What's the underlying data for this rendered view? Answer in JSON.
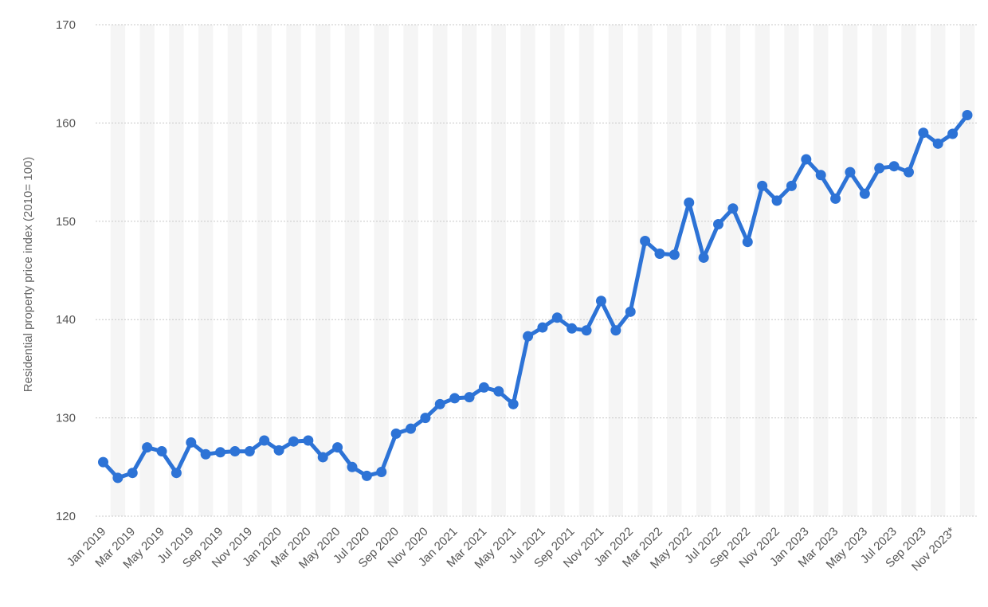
{
  "colors": {
    "line": "#2d73d6",
    "grid": "#c8c8c8",
    "band": "#f5f5f5",
    "text": "#555555"
  },
  "chart_data": {
    "type": "line",
    "title": "",
    "xlabel": "",
    "ylabel": "Residential property price index (2010= 100)",
    "ylim": [
      120,
      170
    ],
    "yticks": [
      120,
      130,
      140,
      150,
      160,
      170
    ],
    "grid": true,
    "grid_style": "dotted-horizontal",
    "alternating_column_bands": true,
    "x": [
      "Jan 2019",
      "Feb 2019",
      "Mar 2019",
      "Apr 2019",
      "May 2019",
      "Jun 2019",
      "Jul 2019",
      "Aug 2019",
      "Sep 2019",
      "Oct 2019",
      "Nov 2019",
      "Dec 2019",
      "Jan 2020",
      "Feb 2020",
      "Mar 2020",
      "Apr 2020",
      "May 2020",
      "Jun 2020",
      "Jul 2020",
      "Aug 2020",
      "Sep 2020",
      "Oct 2020",
      "Nov 2020",
      "Dec 2020",
      "Jan 2021",
      "Feb 2021",
      "Mar 2021",
      "Apr 2021",
      "May 2021",
      "Jun 2021",
      "Jul 2021",
      "Aug 2021",
      "Sep 2021",
      "Oct 2021",
      "Nov 2021",
      "Dec 2021",
      "Jan 2022",
      "Feb 2022",
      "Mar 2022",
      "Apr 2022",
      "May 2022",
      "Jun 2022",
      "Jul 2022",
      "Aug 2022",
      "Sep 2022",
      "Oct 2022",
      "Nov 2022",
      "Dec 2022",
      "Jan 2023",
      "Feb 2023",
      "Mar 2023",
      "Apr 2023",
      "May 2023",
      "Jun 2023",
      "Jul 2023",
      "Aug 2023",
      "Sep 2023",
      "Oct 2023",
      "Nov 2023*",
      "Dec 2023*"
    ],
    "x_tick_labels": [
      "Jan 2019",
      "Mar 2019",
      "May 2019",
      "Jul 2019",
      "Sep 2019",
      "Nov 2019",
      "Jan 2020",
      "Mar 2020",
      "May 2020",
      "Jul 2020",
      "Sep 2020",
      "Nov 2020",
      "Jan 2021",
      "Mar 2021",
      "May 2021",
      "Jul 2021",
      "Sep 2021",
      "Nov 2021",
      "Jan 2022",
      "Mar 2022",
      "May 2022",
      "Jul 2022",
      "Sep 2022",
      "Nov 2022",
      "Jan 2023",
      "Mar 2023",
      "May 2023",
      "Jul 2023",
      "Sep 2023",
      "Nov 2023*"
    ],
    "series": [
      {
        "values": [
          125.5,
          123.9,
          124.4,
          127.0,
          126.6,
          124.4,
          127.5,
          126.3,
          126.5,
          126.6,
          126.6,
          127.7,
          126.7,
          127.6,
          127.7,
          126.0,
          127.0,
          125.0,
          124.1,
          124.5,
          128.4,
          128.9,
          130.0,
          131.4,
          132.0,
          132.1,
          133.1,
          132.7,
          131.4,
          138.3,
          139.2,
          140.2,
          139.1,
          138.9,
          141.9,
          138.9,
          140.8,
          148.0,
          146.7,
          146.6,
          151.9,
          146.3,
          149.7,
          151.3,
          147.9,
          153.6,
          152.1,
          153.6,
          156.3,
          154.7,
          152.3,
          155.0,
          152.8,
          155.4,
          155.6,
          155.0,
          159.0,
          157.9,
          158.9,
          160.8
        ]
      }
    ]
  }
}
